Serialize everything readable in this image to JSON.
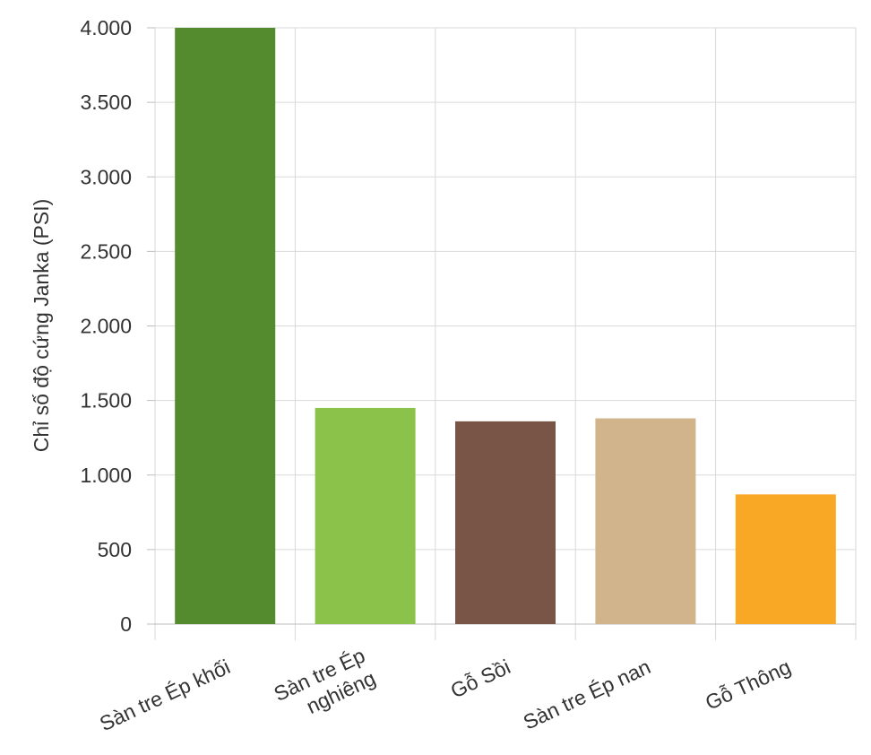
{
  "chart_data": {
    "type": "bar",
    "title": "",
    "xlabel": "",
    "ylabel": "Chỉ số độ cứng Janka (PSI)",
    "categories": [
      [
        "Sàn tre Ép khối"
      ],
      [
        "Sàn tre Ép",
        "nghiêng"
      ],
      [
        "Gỗ Sồi"
      ],
      [
        "Sàn tre Ép nan"
      ],
      [
        "Gỗ Thông"
      ]
    ],
    "values": [
      4000,
      1450,
      1360,
      1380,
      870
    ],
    "colors": [
      "#558b2f",
      "#8bc34a",
      "#795548",
      "#d2b48c",
      "#f9a825"
    ],
    "ylim": [
      0,
      4000
    ],
    "yticks": [
      0,
      500,
      1000,
      1500,
      2000,
      2500,
      3000,
      3500,
      4000
    ],
    "ytick_labels": [
      "0",
      "500",
      "1.000",
      "1.500",
      "2.000",
      "2.500",
      "3.000",
      "3.500",
      "4.000"
    ],
    "grid": true,
    "legend": "none"
  }
}
